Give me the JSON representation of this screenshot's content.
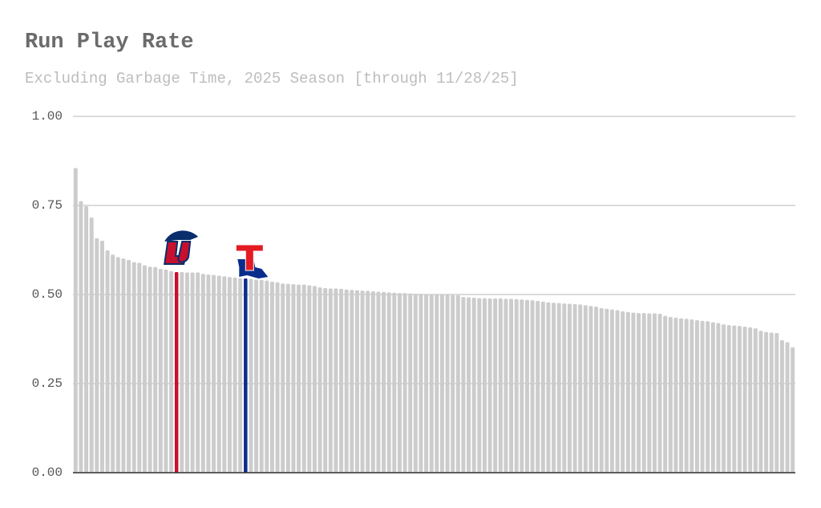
{
  "chart_data": {
    "type": "bar",
    "title": "Run Play Rate",
    "subtitle": "Excluding Garbage Time, 2025 Season [through 11/28/25]",
    "values": [
      0.855,
      0.762,
      0.748,
      0.716,
      0.658,
      0.651,
      0.624,
      0.612,
      0.605,
      0.601,
      0.597,
      0.591,
      0.589,
      0.582,
      0.578,
      0.577,
      0.572,
      0.57,
      0.566,
      0.563,
      0.563,
      0.562,
      0.562,
      0.562,
      0.558,
      0.556,
      0.555,
      0.553,
      0.551,
      0.549,
      0.548,
      0.546,
      0.545,
      0.544,
      0.542,
      0.541,
      0.539,
      0.536,
      0.534,
      0.531,
      0.53,
      0.529,
      0.528,
      0.528,
      0.526,
      0.524,
      0.52,
      0.518,
      0.517,
      0.517,
      0.516,
      0.514,
      0.513,
      0.512,
      0.511,
      0.51,
      0.509,
      0.508,
      0.507,
      0.506,
      0.505,
      0.504,
      0.504,
      0.503,
      0.502,
      0.502,
      0.501,
      0.501,
      0.5,
      0.5,
      0.5,
      0.499,
      0.498,
      0.493,
      0.492,
      0.491,
      0.49,
      0.49,
      0.489,
      0.489,
      0.489,
      0.488,
      0.488,
      0.487,
      0.486,
      0.485,
      0.484,
      0.482,
      0.48,
      0.478,
      0.477,
      0.476,
      0.475,
      0.474,
      0.473,
      0.472,
      0.47,
      0.468,
      0.466,
      0.462,
      0.46,
      0.458,
      0.456,
      0.453,
      0.451,
      0.449,
      0.448,
      0.448,
      0.447,
      0.447,
      0.446,
      0.44,
      0.437,
      0.435,
      0.433,
      0.432,
      0.43,
      0.428,
      0.426,
      0.425,
      0.422,
      0.42,
      0.416,
      0.414,
      0.413,
      0.412,
      0.41,
      0.408,
      0.405,
      0.398,
      0.395,
      0.393,
      0.392,
      0.372,
      0.366,
      0.352
    ],
    "color": "#cccccc",
    "highlights": [
      {
        "index": 19,
        "color": "#c8102e"
      },
      {
        "index": 32,
        "color": "#0a2d8c"
      }
    ],
    "ylim": [
      0,
      1
    ],
    "yticks": [
      {
        "value": 0,
        "label": "0.00"
      },
      {
        "value": 0.25,
        "label": "0.25"
      },
      {
        "value": 0.5,
        "label": "0.50"
      },
      {
        "value": 0.75,
        "label": "0.75"
      },
      {
        "value": 1,
        "label": "1.00"
      }
    ],
    "grid": true
  }
}
